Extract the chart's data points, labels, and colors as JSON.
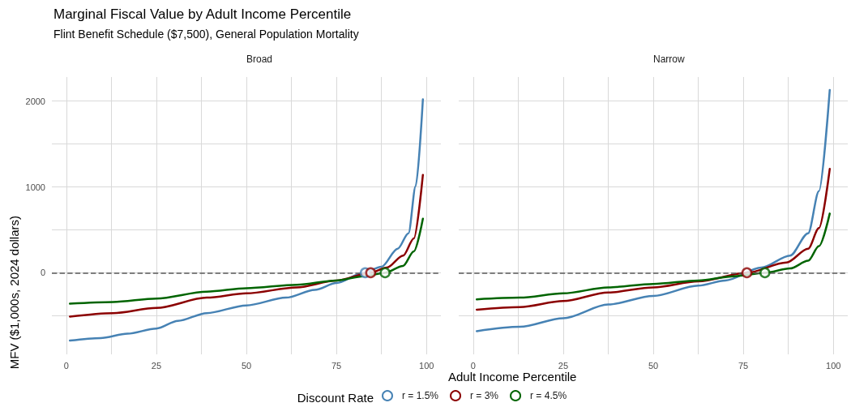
{
  "chart_data": [
    {
      "type": "line",
      "title": "Broad",
      "annotations": [
        "Marginal Fiscal Value by Adult Income Percentile",
        "Flint Benefit Schedule ($7,500), General Population Mortality"
      ],
      "xlabel": "Adult Income Percentile",
      "ylabel": "MFV ($1,000s, 2024 dollars)",
      "legend_title": "Discount Rate",
      "legend": "bottom",
      "grid": true,
      "marker": "none",
      "line_style": "solid",
      "xlim": [
        -4,
        104
      ],
      "xticks": [
        0,
        {
          "value": 12.5,
          "label": null
        },
        25,
        {
          "value": 37.5,
          "label": null
        },
        50,
        {
          "value": 62.5,
          "label": null
        },
        75,
        {
          "value": 87.5,
          "label": null
        },
        100
      ],
      "ylim": [
        -950,
        2280
      ],
      "yticks": [
        {
          "value": -500,
          "label": null
        },
        0,
        {
          "value": 500,
          "label": null
        },
        1000,
        {
          "value": 1500,
          "label": null
        },
        2000
      ],
      "ref_lines": [
        {
          "axis": "y",
          "value": 0,
          "line_style": "dashed",
          "color": "#5a5a5a"
        }
      ],
      "series": [
        {
          "name": "r = 1.5%",
          "color": "#4682b4",
          "x": [
            1,
            9.5,
            17,
            25,
            31,
            39,
            50,
            61,
            69,
            75,
            82.5,
            87.5,
            92,
            95,
            97,
            99
          ],
          "values": [
            -790,
            -760,
            -710,
            -650,
            -560,
            -470,
            -380,
            -290,
            -200,
            -120,
            0,
            70,
            280,
            460,
            1010,
            2020
          ]
        },
        {
          "name": "r = 3%",
          "color": "#8b0000",
          "x": [
            1,
            13,
            25,
            39,
            50,
            64,
            75,
            84.5,
            89,
            93.5,
            96.5,
            99
          ],
          "values": [
            -510,
            -470,
            -410,
            -290,
            -240,
            -170,
            -90,
            0,
            60,
            200,
            400,
            1140
          ]
        },
        {
          "name": "r = 4.5%",
          "color": "#006400",
          "x": [
            1,
            13,
            25,
            39,
            50,
            64,
            75,
            82.5,
            88.5,
            93.5,
            96.5,
            99
          ],
          "values": [
            -360,
            -340,
            -300,
            -220,
            -180,
            -140,
            -90,
            -40,
            0,
            80,
            250,
            630
          ]
        },
        {
          "type": "scatter",
          "marker": "circle",
          "color": "#4682b4",
          "x": [
            83
          ],
          "values": [
            0
          ]
        },
        {
          "type": "scatter",
          "marker": "circle",
          "color": "#8b0000",
          "x": [
            84.5
          ],
          "values": [
            0
          ]
        },
        {
          "type": "scatter",
          "marker": "circle",
          "color": "#006400",
          "x": [
            88.5
          ],
          "values": [
            0
          ]
        }
      ]
    },
    {
      "type": "line",
      "title": "Narrow",
      "grid": true,
      "marker": "none",
      "line_style": "solid",
      "tick_labels": "x",
      "xlim": [
        -4,
        104
      ],
      "xticks": [
        0,
        {
          "value": 12.5,
          "label": null
        },
        25,
        {
          "value": 37.5,
          "label": null
        },
        50,
        {
          "value": 62.5,
          "label": null
        },
        75,
        {
          "value": 87.5,
          "label": null
        },
        100
      ],
      "ylim": [
        -950,
        2280
      ],
      "yticks": [
        {
          "value": -500,
          "label": null
        },
        0,
        {
          "value": 500,
          "label": null
        },
        1000,
        {
          "value": 1500,
          "label": null
        },
        2000
      ],
      "ref_lines": [
        {
          "axis": "y",
          "value": 0,
          "line_style": "dashed",
          "color": "#5a5a5a"
        }
      ],
      "series": [
        {
          "color": "#4682b4",
          "x": [
            1,
            13,
            25,
            37.5,
            50,
            62.5,
            70,
            80,
            88,
            93,
            96,
            99
          ],
          "values": [
            -680,
            -630,
            -530,
            -370,
            -270,
            -150,
            -90,
            60,
            200,
            460,
            950,
            2130
          ]
        },
        {
          "color": "#8b0000",
          "x": [
            1,
            13,
            25,
            37.5,
            50,
            62.5,
            76,
            87,
            93,
            96,
            99
          ],
          "values": [
            -430,
            -400,
            -330,
            -230,
            -170,
            -100,
            0,
            120,
            280,
            520,
            1210
          ]
        },
        {
          "color": "#006400",
          "x": [
            1,
            13,
            25,
            37.5,
            50,
            62.5,
            72.5,
            81,
            88,
            93,
            96,
            99
          ],
          "values": [
            -310,
            -290,
            -240,
            -170,
            -130,
            -90,
            -40,
            0,
            50,
            140,
            310,
            690
          ]
        },
        {
          "type": "scatter",
          "marker": "circle",
          "color": "#8b0000",
          "x": [
            76
          ],
          "values": [
            0
          ]
        },
        {
          "type": "scatter",
          "marker": "circle",
          "color": "#006400",
          "x": [
            81
          ],
          "values": [
            0
          ]
        }
      ]
    }
  ]
}
